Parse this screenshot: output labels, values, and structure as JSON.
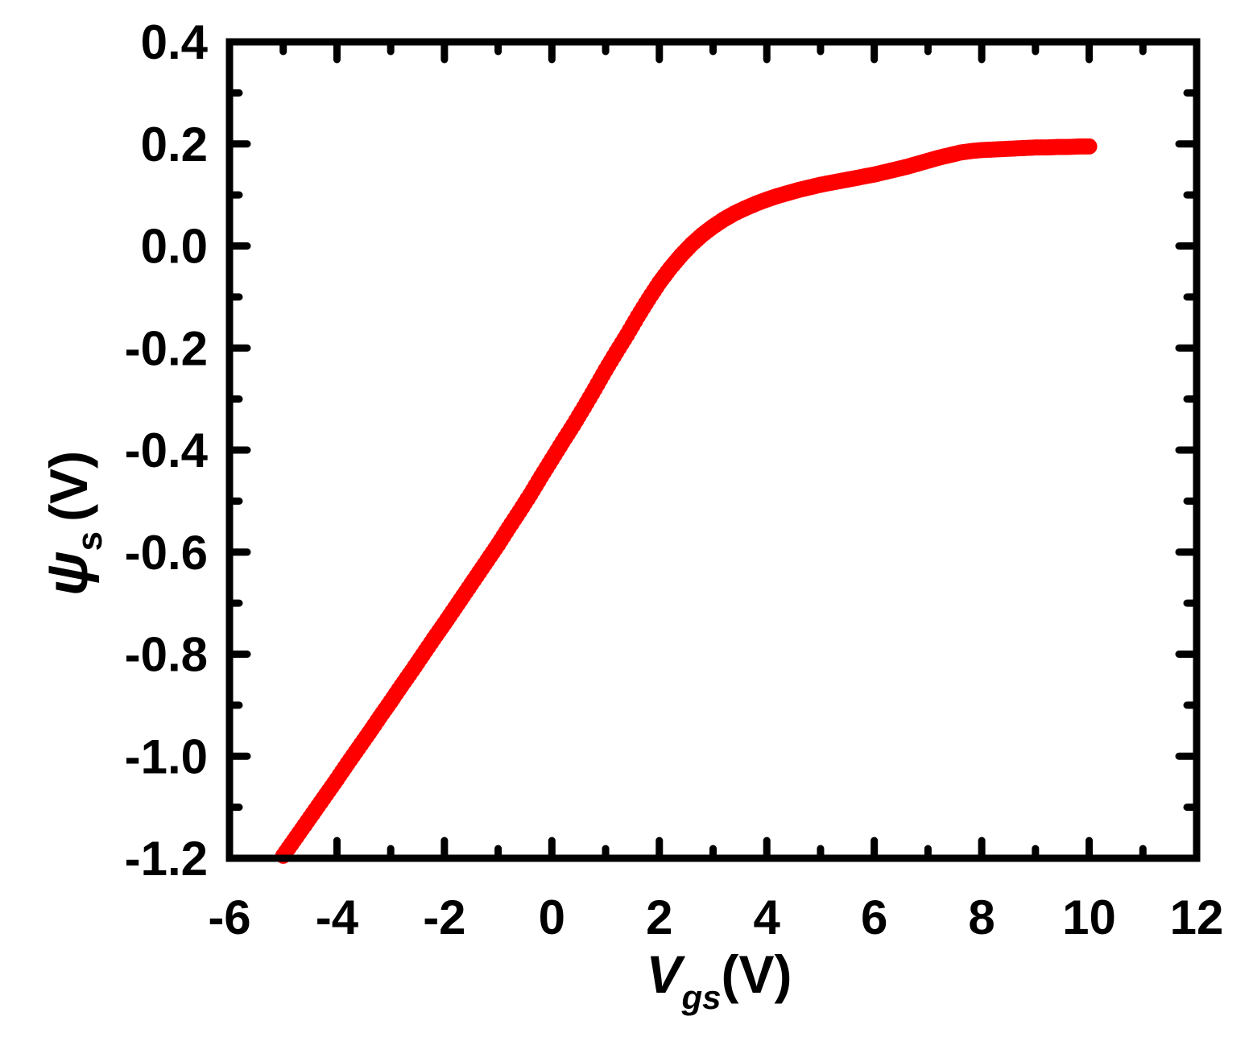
{
  "chart_data": {
    "type": "scatter",
    "xlabel": {
      "symbol": "V",
      "subscript": "gs",
      "unit": "(V)"
    },
    "ylabel": {
      "symbol": "ψ",
      "subscript": "s",
      "unit": "(V)"
    },
    "xlim": [
      -6,
      12
    ],
    "ylim": [
      -1.2,
      0.4
    ],
    "xticks": [
      -6,
      -4,
      -2,
      0,
      2,
      4,
      6,
      8,
      10,
      12
    ],
    "xtick_labels": [
      "-6",
      "-4",
      "-2",
      "0",
      "2",
      "4",
      "6",
      "8",
      "10",
      "12"
    ],
    "yticks": [
      -1.2,
      -1.0,
      -0.8,
      -0.6,
      -0.4,
      -0.2,
      0.0,
      0.2,
      0.4
    ],
    "ytick_labels": [
      "-1.2",
      "-1.0",
      "-0.8",
      "-0.6",
      "-0.4",
      "-0.2",
      "0.0",
      "0.2",
      "0.4"
    ],
    "grid": false,
    "series": [
      {
        "color": "#ff0000",
        "marker": "circle",
        "x": [
          -5.0,
          -4.8,
          -4.6,
          -4.4,
          -4.2,
          -4.0,
          -3.8,
          -3.6,
          -3.4,
          -3.2,
          -3.0,
          -2.8,
          -2.6,
          -2.4,
          -2.2,
          -2.0,
          -1.8,
          -1.6,
          -1.4,
          -1.2,
          -1.0,
          -0.8,
          -0.6,
          -0.4,
          -0.2,
          0.0,
          0.2,
          0.4,
          0.6,
          0.8,
          1.0,
          1.2,
          1.4,
          1.6,
          1.8,
          2.0,
          2.2,
          2.4,
          2.6,
          2.8,
          3.0,
          3.2,
          3.4,
          3.6,
          3.8,
          4.0,
          4.2,
          4.4,
          4.6,
          4.8,
          5.0,
          5.2,
          5.4,
          5.6,
          5.8,
          6.0,
          6.2,
          6.4,
          6.6,
          6.8,
          7.0,
          7.2,
          7.4,
          7.6,
          7.8,
          8.0,
          8.2,
          8.4,
          8.6,
          8.8,
          9.0,
          9.2,
          9.4,
          9.6,
          9.8,
          10.0
        ],
        "y": [
          -1.195,
          -1.165,
          -1.135,
          -1.105,
          -1.075,
          -1.045,
          -1.014,
          -0.984,
          -0.954,
          -0.923,
          -0.893,
          -0.862,
          -0.832,
          -0.801,
          -0.77,
          -0.74,
          -0.709,
          -0.678,
          -0.647,
          -0.616,
          -0.585,
          -0.552,
          -0.52,
          -0.487,
          -0.452,
          -0.418,
          -0.384,
          -0.351,
          -0.316,
          -0.28,
          -0.243,
          -0.208,
          -0.174,
          -0.138,
          -0.104,
          -0.072,
          -0.044,
          -0.019,
          0.003,
          0.022,
          0.038,
          0.052,
          0.064,
          0.074,
          0.083,
          0.091,
          0.098,
          0.104,
          0.11,
          0.115,
          0.12,
          0.124,
          0.128,
          0.132,
          0.136,
          0.14,
          0.145,
          0.15,
          0.155,
          0.161,
          0.167,
          0.173,
          0.178,
          0.183,
          0.186,
          0.188,
          0.189,
          0.19,
          0.191,
          0.192,
          0.193,
          0.193,
          0.194,
          0.194,
          0.195,
          0.195
        ]
      }
    ]
  }
}
